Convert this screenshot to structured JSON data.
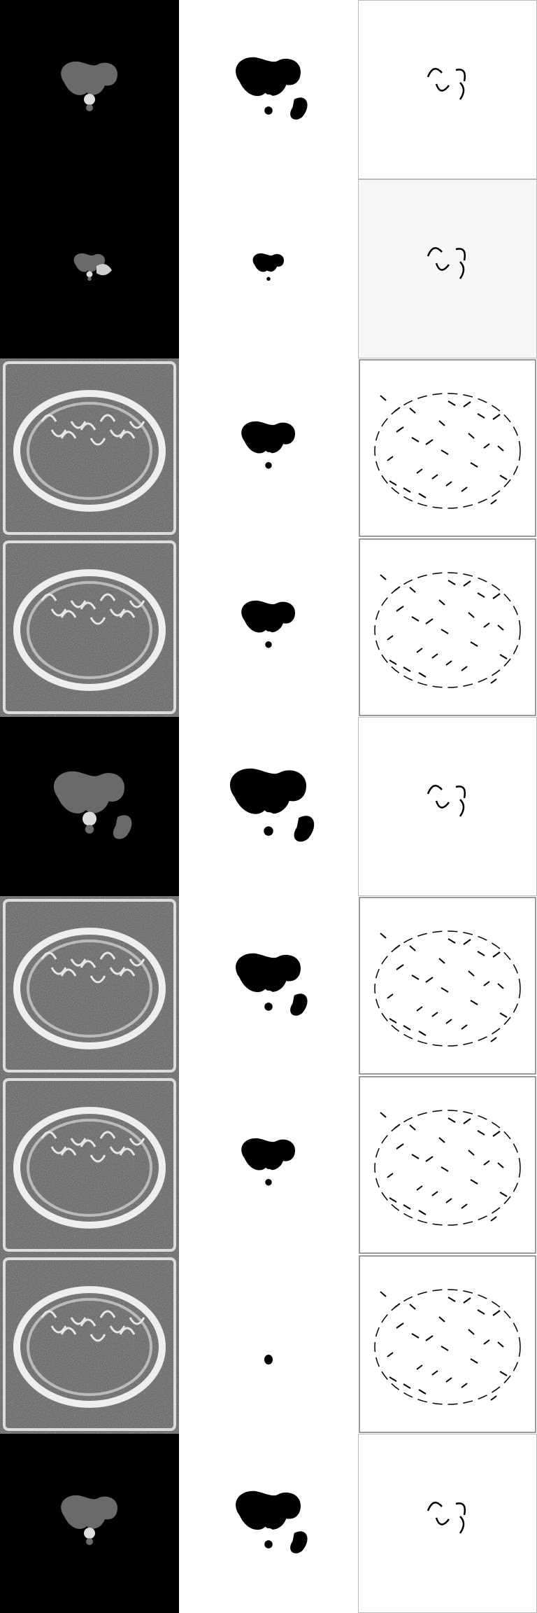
{
  "layout_note": "",
  "grid": {
    "columns": [
      {
        "id": "input",
        "kind": "scan"
      },
      {
        "id": "mask",
        "kind": "segmentation-mask"
      },
      {
        "id": "edges",
        "kind": "edge-map"
      }
    ],
    "rows": [
      {
        "input": "organs-gray",
        "mask": "organs-large",
        "edges": "sparse"
      },
      {
        "input": "organs-small",
        "mask": "organs-small",
        "edges": "sparse-gray-bg"
      },
      {
        "input": "ct-texture",
        "mask": "organs-medium",
        "edges": "dense-body"
      },
      {
        "input": "ct-texture",
        "mask": "organs-medium",
        "edges": "dense-body"
      },
      {
        "input": "organs-gray-large",
        "mask": "organs-xl",
        "edges": "sparse"
      },
      {
        "input": "ct-texture",
        "mask": "organs-large",
        "edges": "dense-body"
      },
      {
        "input": "ct-texture",
        "mask": "organs-medium",
        "edges": "dense-body"
      },
      {
        "input": "ct-texture",
        "mask": "dot",
        "edges": "dense-body"
      },
      {
        "input": "organs-gray",
        "mask": "organs-large",
        "edges": "sparse"
      }
    ]
  }
}
